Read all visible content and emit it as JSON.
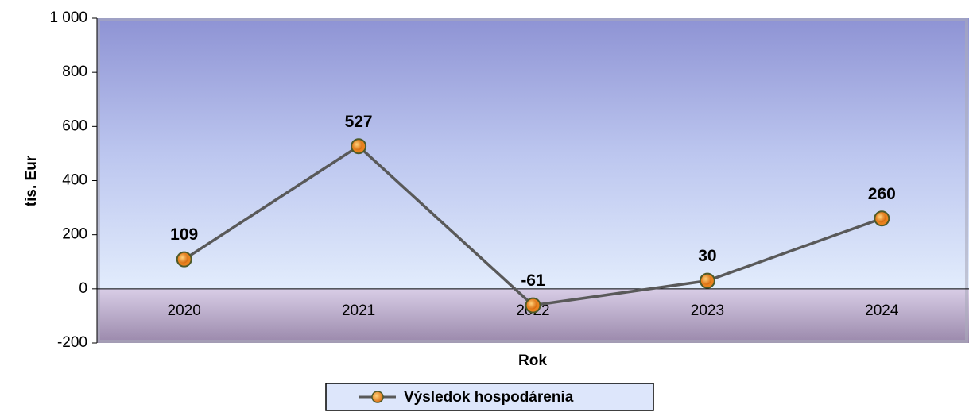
{
  "chart_data": {
    "type": "line",
    "y_label": "tis. Eur",
    "x_label": "Rok",
    "categories": [
      "2020",
      "2021",
      "2022",
      "2023",
      "2024"
    ],
    "series": [
      {
        "name": "Výsledok hospodárenia",
        "color": "#595959",
        "marker_color": "#e8821e",
        "values": [
          109,
          527,
          -61,
          30,
          260
        ]
      }
    ],
    "ylim": [
      -200,
      1000
    ],
    "yticks": [
      -200,
      0,
      200,
      400,
      600,
      800,
      {
        "value": 1000,
        "label": "1 000"
      }
    ],
    "legend": "bottom"
  }
}
